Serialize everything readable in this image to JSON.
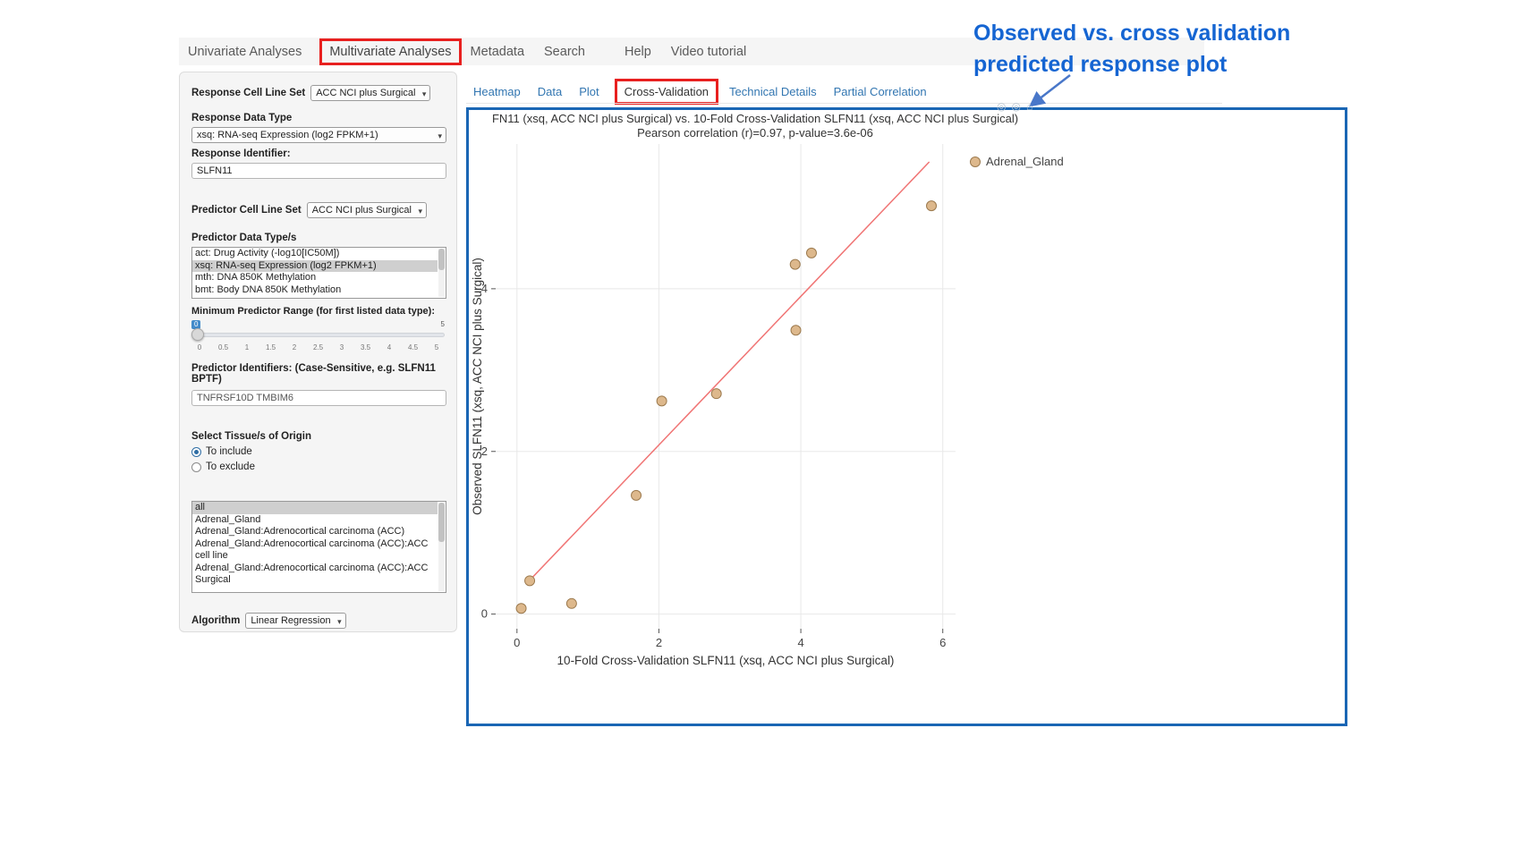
{
  "topnav": {
    "items": [
      "Univariate Analyses",
      "Multivariate Analyses",
      "Metadata",
      "Search",
      "Help",
      "Video tutorial"
    ],
    "highlighted": "Multivariate Analyses"
  },
  "sidebar": {
    "response_cell_line_set_label": "Response Cell Line Set",
    "response_cell_line_set_value": "ACC NCI plus Surgical",
    "response_data_type_label": "Response Data Type",
    "response_data_type_value": "xsq: RNA-seq Expression (log2 FPKM+1)",
    "response_identifier_label": "Response Identifier:",
    "response_identifier_value": "SLFN11",
    "predictor_cell_line_set_label": "Predictor Cell Line Set",
    "predictor_cell_line_set_value": "ACC NCI plus Surgical",
    "predictor_data_types_label": "Predictor Data Type/s",
    "predictor_data_types_options": [
      "act: Drug Activity (-log10[IC50M])",
      "xsq: RNA-seq Expression (log2 FPKM+1)",
      "mth: DNA 850K Methylation",
      "bmt: Body DNA 850K Methylation"
    ],
    "predictor_data_types_selected": "xsq: RNA-seq Expression (log2 FPKM+1)",
    "min_range_label": "Minimum Predictor Range (for first listed data type):",
    "min_range_value": "0",
    "min_range_max": "5",
    "min_range_ticks": [
      "0",
      "0.5",
      "1",
      "1.5",
      "2",
      "2.5",
      "3",
      "3.5",
      "4",
      "4.5",
      "5"
    ],
    "predictor_identifiers_label": "Predictor Identifiers: (Case-Sensitive, e.g. SLFN11 BPTF)",
    "predictor_identifiers_value": "TNFRSF10D TMBIM6",
    "tissue_label": "Select Tissue/s of Origin",
    "tissue_include_label": "To include",
    "tissue_exclude_label": "To exclude",
    "tissue_include_selected": true,
    "tissue_options": [
      "all",
      "Adrenal_Gland",
      "Adrenal_Gland:Adrenocortical carcinoma (ACC)",
      "Adrenal_Gland:Adrenocortical carcinoma (ACC):ACC cell line",
      "Adrenal_Gland:Adrenocortical carcinoma (ACC):ACC Surgical"
    ],
    "tissue_selected": "all",
    "algorithm_label": "Algorithm",
    "algorithm_value": "Linear Regression"
  },
  "content_tabs": {
    "items": [
      "Heatmap",
      "Data",
      "Plot",
      "Cross-Validation",
      "Technical Details",
      "Partial Correlation"
    ],
    "active": "Cross-Validation"
  },
  "annotation": {
    "line1": "Observed vs. cross validation",
    "line2": "predicted response plot",
    "color": "#1565d2"
  },
  "chart_data": {
    "type": "scatter",
    "title": "FN11 (xsq, ACC NCI plus Surgical) vs. 10-Fold Cross-Validation SLFN11 (xsq, ACC NCI plus Surgical)",
    "subtitle": "Pearson correlation (r)=0.97, p-value=3.6e-06",
    "xlabel": "10-Fold Cross-Validation SLFN11 (xsq, ACC NCI plus Surgical)",
    "ylabel": "Observed SLFN11 (xsq, ACC NCI plus Surgical)",
    "xlim": [
      -0.3,
      6.18
    ],
    "ylim": [
      -0.18,
      5.78
    ],
    "xticks": [
      0,
      2,
      4,
      6
    ],
    "yticks": [
      0,
      2,
      4
    ],
    "grid": true,
    "legend": [
      {
        "label": "Adrenal_Gland",
        "color": "#ddb88c"
      }
    ],
    "series": [
      {
        "name": "Adrenal_Gland",
        "color": "#ddb88c",
        "outline": "#9c7a4e",
        "points": [
          [
            0.06,
            0.07
          ],
          [
            0.18,
            0.41
          ],
          [
            0.77,
            0.13
          ],
          [
            1.68,
            1.46
          ],
          [
            2.04,
            2.62
          ],
          [
            2.81,
            2.71
          ],
          [
            3.93,
            3.49
          ],
          [
            3.92,
            4.3
          ],
          [
            4.15,
            4.44
          ],
          [
            5.84,
            5.02
          ]
        ]
      }
    ],
    "regression_line": {
      "color": "#f07474",
      "start": [
        0.14,
        0.38
      ],
      "end": [
        5.81,
        5.56
      ]
    }
  }
}
